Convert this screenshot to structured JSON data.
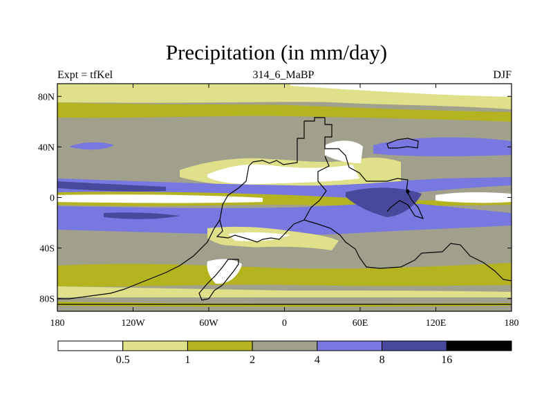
{
  "title": "Precipitation (in mm/day)",
  "left_label": "Expt = tfKel",
  "center_label": "314_6_MaBP",
  "right_label": "DJF",
  "axes": {
    "lat_ticks": [
      {
        "lat": 80,
        "label": "80N"
      },
      {
        "lat": 40,
        "label": "40N"
      },
      {
        "lat": 0,
        "label": "0"
      },
      {
        "lat": -40,
        "label": "40S"
      },
      {
        "lat": -80,
        "label": "80S"
      }
    ],
    "lon_ticks": [
      {
        "lon": -180,
        "label": "180"
      },
      {
        "lon": -120,
        "label": "120W"
      },
      {
        "lon": -60,
        "label": "60W"
      },
      {
        "lon": 0,
        "label": "0"
      },
      {
        "lon": 60,
        "label": "60E"
      },
      {
        "lon": 120,
        "label": "120E"
      },
      {
        "lon": 180,
        "label": "180"
      }
    ],
    "lon_range": [
      -180,
      180
    ],
    "lat_range": [
      -90,
      90
    ]
  },
  "colorbar": {
    "colors": [
      "#ffffff",
      "#e0e08a",
      "#b4b420",
      "#a0a08c",
      "#7878e0",
      "#48489c",
      "#000000"
    ],
    "boundaries": [
      "0.5",
      "1",
      "2",
      "4",
      "8",
      "16"
    ]
  },
  "colors": {
    "dry": "#ffffff",
    "level1": "#e0e08a",
    "level2": "#b4b420",
    "level3": "#a0a08c",
    "level4": "#7878e0",
    "level5": "#48489c",
    "level6": "#000000"
  }
}
